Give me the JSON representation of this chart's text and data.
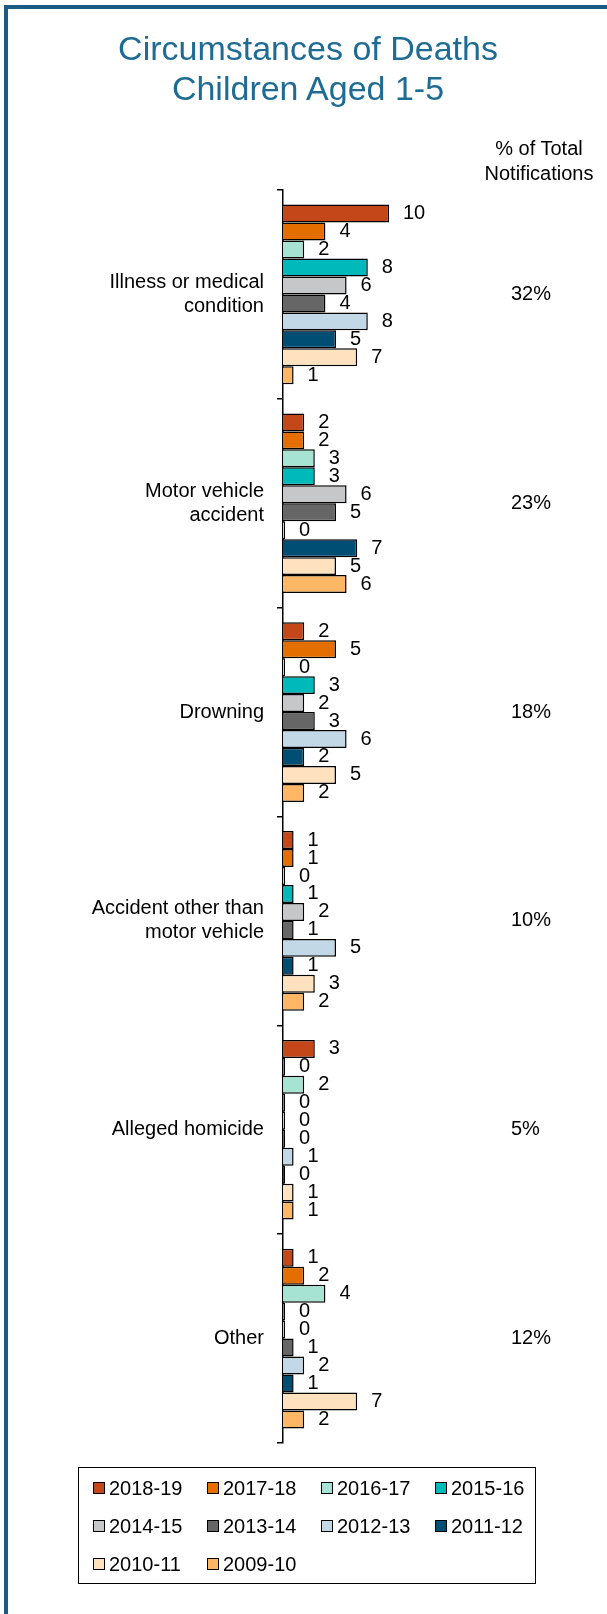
{
  "chart_data": {
    "type": "bar",
    "orientation": "horizontal",
    "title": "Circumstances of Deaths\nChildren Aged 1-5",
    "y2label": "% of Total Notifications",
    "categories": [
      "Illness or medical condition",
      "Motor vehicle accident",
      "Drowning",
      "Accident other than motor vehicle",
      "Alleged homicide",
      "Other"
    ],
    "y2_categories": [
      "32%",
      "23%",
      "18%",
      "10%",
      "5%",
      "12%"
    ],
    "series": [
      {
        "name": "2018-19",
        "color": "#c4471a",
        "values": [
          10,
          2,
          2,
          1,
          3,
          1
        ]
      },
      {
        "name": "2017-18",
        "color": "#e46f00",
        "values": [
          4,
          2,
          5,
          1,
          0,
          2
        ]
      },
      {
        "name": "2016-17",
        "color": "#a6e3d2",
        "values": [
          2,
          3,
          0,
          0,
          2,
          4
        ]
      },
      {
        "name": "2015-16",
        "color": "#00b9ba",
        "values": [
          8,
          3,
          3,
          1,
          0,
          0
        ]
      },
      {
        "name": "2014-15",
        "color": "#c6c7c9",
        "values": [
          6,
          6,
          2,
          2,
          0,
          0
        ]
      },
      {
        "name": "2013-14",
        "color": "#666666",
        "values": [
          4,
          5,
          3,
          1,
          0,
          1
        ]
      },
      {
        "name": "2012-13",
        "color": "#c3d8e7",
        "values": [
          8,
          0,
          6,
          5,
          1,
          2
        ]
      },
      {
        "name": "2011-12",
        "color": "#004e73",
        "values": [
          5,
          7,
          2,
          1,
          0,
          1
        ]
      },
      {
        "name": "2010-11",
        "color": "#fee1bf",
        "values": [
          7,
          5,
          5,
          3,
          1,
          7
        ]
      },
      {
        "name": "2009-10",
        "color": "#ffb765",
        "values": [
          1,
          6,
          2,
          2,
          1,
          2
        ]
      }
    ],
    "data_labels": true,
    "legend": "bottom",
    "tick_labels": "y",
    "grid": false
  }
}
